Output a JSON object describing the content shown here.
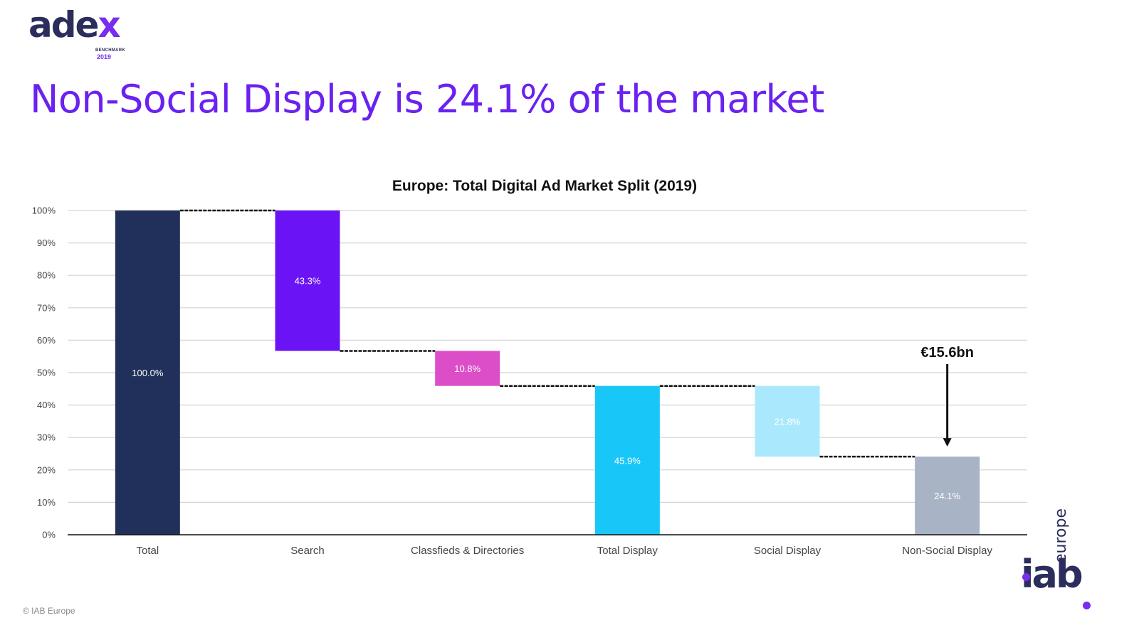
{
  "brand": {
    "adex_word": "ade",
    "adex_x": "x",
    "adex_benchmark": "BENCHMARK",
    "adex_year": "2019",
    "iab_word": "iab",
    "iab_region": "europe",
    "colors": {
      "navy": "#2b2d5c",
      "purple": "#7a2cf0"
    }
  },
  "page": {
    "title": "Non-Social Display is 24.1% of the market",
    "copyright": "© IAB Europe"
  },
  "chart_data": {
    "type": "bar",
    "subtype": "waterfall",
    "title": "Europe: Total Digital Ad Market Split (2019)",
    "xlabel": "",
    "ylabel": "",
    "ylim": [
      0,
      100
    ],
    "yticks": [
      0,
      10,
      20,
      30,
      40,
      50,
      60,
      70,
      80,
      90,
      100
    ],
    "ytick_labels": [
      "0%",
      "10%",
      "20%",
      "30%",
      "40%",
      "50%",
      "60%",
      "70%",
      "80%",
      "90%",
      "100%"
    ],
    "grid": true,
    "categories": [
      "Total",
      "Search",
      "Classfieds & Directories",
      "Total Display",
      "Social Display",
      "Non-Social Display"
    ],
    "bars": [
      {
        "category": "Total",
        "start": 0,
        "end": 100,
        "label": "100.0%",
        "color": "#21305a"
      },
      {
        "category": "Search",
        "start": 56.7,
        "end": 100,
        "label": "43.3%",
        "color": "#6a14f5"
      },
      {
        "category": "Classfieds & Directories",
        "start": 45.9,
        "end": 56.7,
        "label": "10.8%",
        "color": "#dc4ec8"
      },
      {
        "category": "Total Display",
        "start": 0,
        "end": 45.9,
        "label": "45.9%",
        "color": "#19c6f8"
      },
      {
        "category": "Social Display",
        "start": 24.1,
        "end": 45.9,
        "label": "21.8%",
        "color": "#aae8fd"
      },
      {
        "category": "Non-Social Display",
        "start": 0,
        "end": 24.1,
        "label": "24.1%",
        "color": "#a9b3c6"
      }
    ],
    "connectors": [
      {
        "from": "Total",
        "to": "Search",
        "level": 100
      },
      {
        "from": "Search",
        "to": "Classfieds & Directories",
        "level": 56.7
      },
      {
        "from": "Classfieds & Directories",
        "to": "Total Display",
        "level": 45.9
      },
      {
        "from": "Total Display",
        "to": "Social Display",
        "level": 45.9
      },
      {
        "from": "Social Display",
        "to": "Non-Social Display",
        "level": 24.1
      }
    ],
    "annotation": {
      "text": "€15.6bn",
      "target": "Non-Social Display",
      "arrow": true
    }
  }
}
